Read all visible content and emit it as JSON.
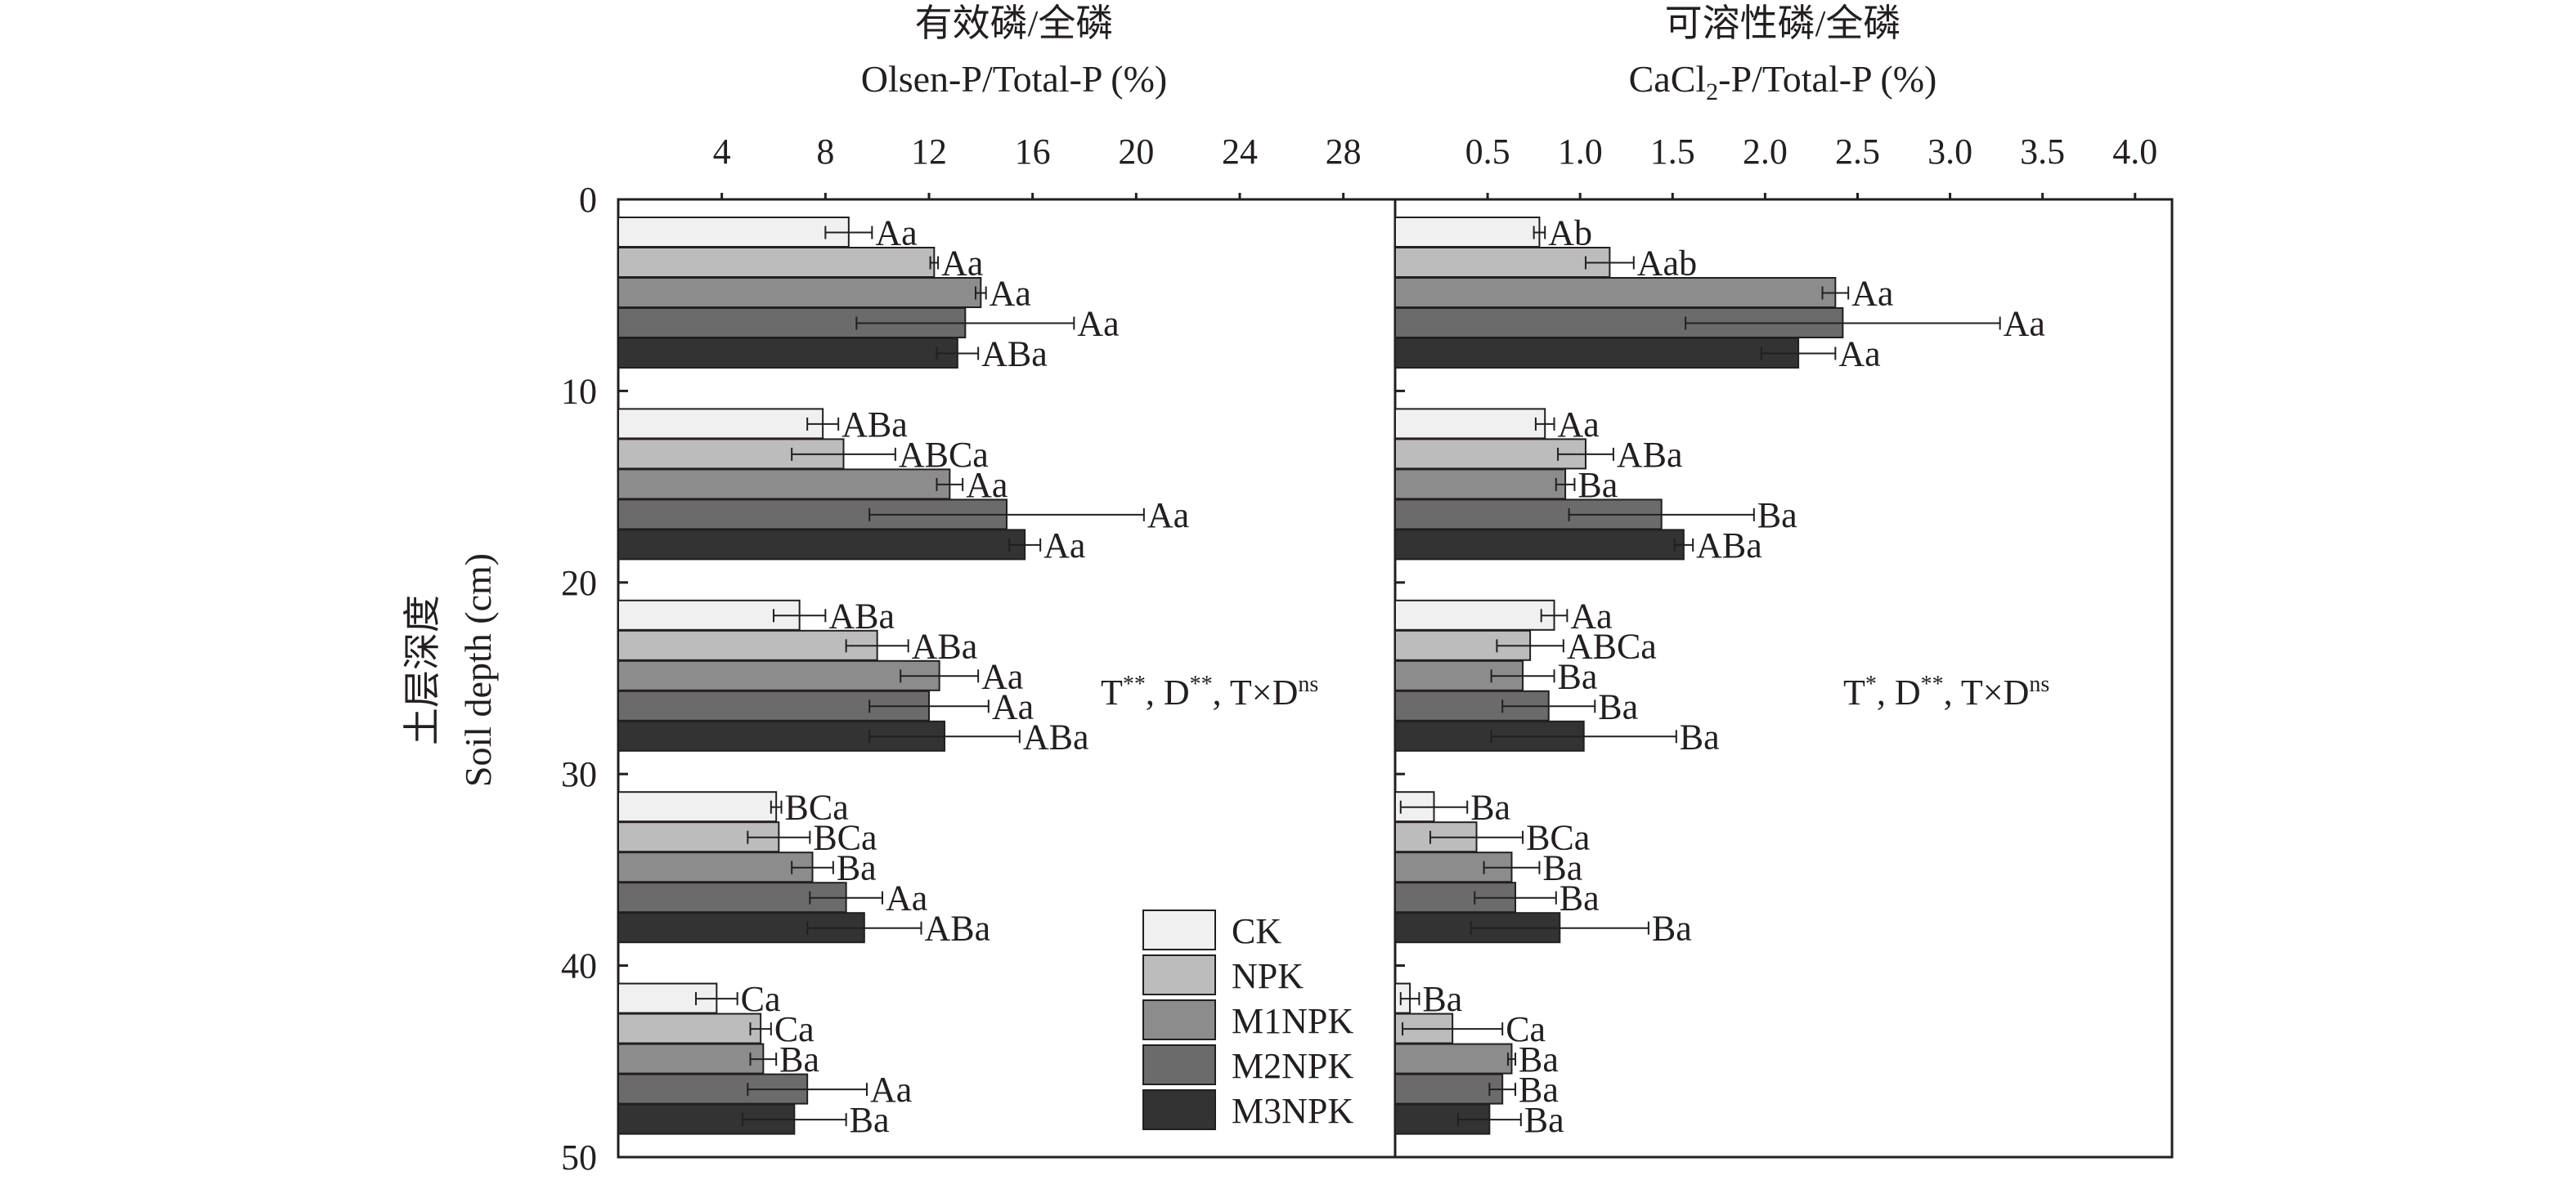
{
  "chart_data": [
    {
      "type": "bar",
      "orientation": "horizontal",
      "title": "有效磷/全磷",
      "xlabel": "Olsen-P/Total-P (%)",
      "ylabel_cn": "土层深度",
      "ylabel": "Soil depth (cm)",
      "xlim": [
        0,
        30
      ],
      "x_ticks": [
        4,
        8,
        12,
        16,
        20,
        24,
        28
      ],
      "ylim": [
        0,
        50
      ],
      "y_ticks": [
        0,
        10,
        20,
        30,
        40,
        50
      ],
      "depth_groups": [
        "0-10",
        "10-20",
        "20-30",
        "30-40",
        "40-50"
      ],
      "series": [
        {
          "name": "CK",
          "values": [
            8.9,
            7.9,
            7.0,
            6.1,
            3.8
          ],
          "errors": [
            0.9,
            0.6,
            1.0,
            0.2,
            0.8
          ],
          "labels": [
            "Aa",
            "ABa",
            "ABa",
            "BCa",
            "Ca"
          ]
        },
        {
          "name": "NPK",
          "values": [
            12.2,
            8.7,
            10.0,
            6.2,
            5.5
          ],
          "errors": [
            0.15,
            2.0,
            1.2,
            1.2,
            0.4
          ],
          "labels": [
            "Aa",
            "ABCa",
            "ABa",
            "BCa",
            "Ca"
          ]
        },
        {
          "name": "M1NPK",
          "values": [
            14.0,
            12.8,
            12.4,
            7.5,
            5.6
          ],
          "errors": [
            0.2,
            0.5,
            1.5,
            0.8,
            0.5
          ],
          "labels": [
            "Aa",
            "Aa",
            "Aa",
            "Ba",
            "Ba"
          ]
        },
        {
          "name": "M2NPK",
          "values": [
            13.4,
            15.0,
            12.0,
            8.8,
            7.3
          ],
          "errors": [
            4.2,
            5.3,
            2.3,
            1.4,
            2.3
          ],
          "labels": [
            "Aa",
            "Aa",
            "Aa",
            "Aa",
            "Aa"
          ]
        },
        {
          "name": "M3NPK",
          "values": [
            13.1,
            15.7,
            12.6,
            9.5,
            6.8
          ],
          "errors": [
            0.8,
            0.6,
            2.9,
            2.2,
            2.0
          ],
          "labels": [
            "ABa",
            "Aa",
            "ABa",
            "ABa",
            "Ba"
          ]
        }
      ],
      "annotation": {
        "t": "T",
        "t_sup": "**",
        "d": ", D",
        "d_sup": "**",
        "txd": ", T×D",
        "txd_sup": "ns"
      }
    },
    {
      "type": "bar",
      "orientation": "horizontal",
      "title": "可溶性磷/全磷",
      "xlabel_parts": {
        "pre": "CaCl",
        "sub": "2",
        "post": "-P/Total-P (%)"
      },
      "xlim": [
        0,
        4.2
      ],
      "x_ticks": [
        "0.5",
        "1.0",
        "1.5",
        "2.0",
        "2.5",
        "3.0",
        "3.5",
        "4.0"
      ],
      "ylim": [
        0,
        50
      ],
      "depth_groups": [
        "0-10",
        "10-20",
        "20-30",
        "30-40",
        "40-50"
      ],
      "series": [
        {
          "name": "CK",
          "values": [
            0.78,
            0.81,
            0.86,
            0.21,
            0.08
          ],
          "errors": [
            0.03,
            0.05,
            0.07,
            0.18,
            0.05
          ],
          "labels": [
            "Ab",
            "Aa",
            "Aa",
            "Ba",
            "Ba"
          ]
        },
        {
          "name": "NPK",
          "values": [
            1.16,
            1.03,
            0.73,
            0.44,
            0.31
          ],
          "errors": [
            0.13,
            0.15,
            0.18,
            0.25,
            0.27
          ],
          "labels": [
            "Aab",
            "ABa",
            "ABCa",
            "BCa",
            "Ca"
          ]
        },
        {
          "name": "M1NPK",
          "values": [
            2.38,
            0.92,
            0.69,
            0.63,
            0.63
          ],
          "errors": [
            0.07,
            0.05,
            0.17,
            0.15,
            0.02
          ],
          "labels": [
            "Aa",
            "Ba",
            "Ba",
            "Ba",
            "Ba"
          ]
        },
        {
          "name": "M2NPK",
          "values": [
            2.42,
            1.44,
            0.83,
            0.65,
            0.58
          ],
          "errors": [
            0.85,
            0.5,
            0.25,
            0.22,
            0.07
          ],
          "labels": [
            "Aa",
            "Ba",
            "Ba",
            "Ba",
            "Ba"
          ]
        },
        {
          "name": "M3NPK",
          "values": [
            2.18,
            1.56,
            1.02,
            0.89,
            0.51
          ],
          "errors": [
            0.2,
            0.05,
            0.5,
            0.48,
            0.17
          ],
          "labels": [
            "Aa",
            "ABa",
            "Ba",
            "Ba",
            "Ba"
          ]
        }
      ],
      "annotation": {
        "t": "T",
        "t_sup": "*",
        "d": ", D",
        "d_sup": "**",
        "txd": ", T×D",
        "txd_sup": "ns"
      }
    }
  ],
  "legend": {
    "placement": "bottom-right of left panel",
    "items": [
      {
        "name": "CK",
        "color": "#f0f0f0"
      },
      {
        "name": "NPK",
        "color": "#bcbcbc"
      },
      {
        "name": "M1NPK",
        "color": "#8c8c8c"
      },
      {
        "name": "M2NPK",
        "color": "#6b6b6b"
      },
      {
        "name": "M3NPK",
        "color": "#333333"
      }
    ]
  }
}
